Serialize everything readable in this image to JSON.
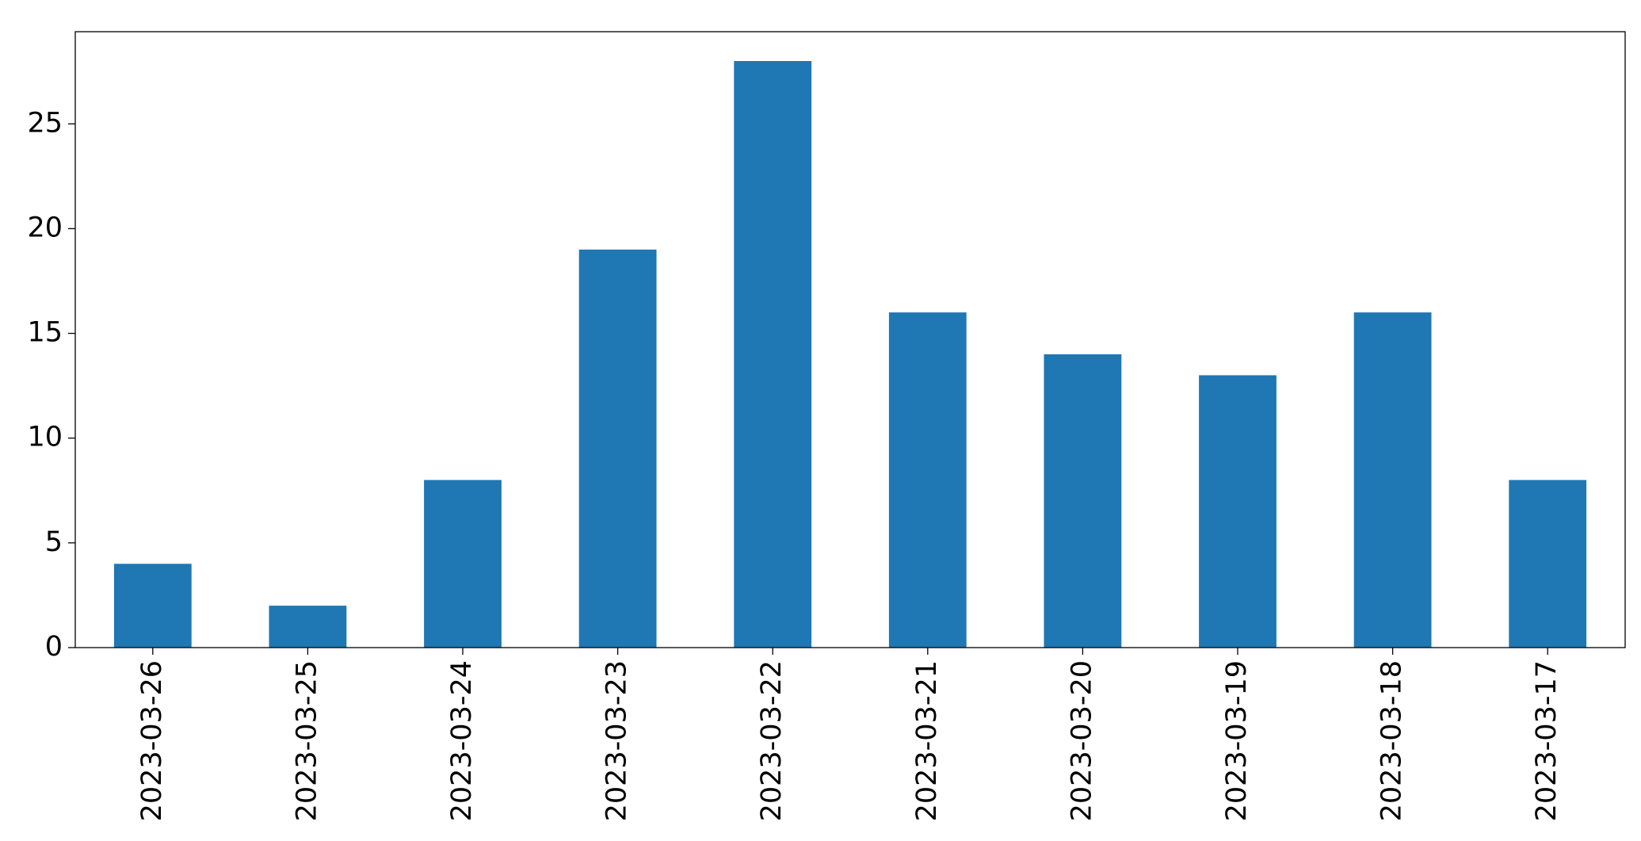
{
  "chart_data": {
    "type": "bar",
    "categories": [
      "2023-03-26",
      "2023-03-25",
      "2023-03-24",
      "2023-03-23",
      "2023-03-22",
      "2023-03-21",
      "2023-03-20",
      "2023-03-19",
      "2023-03-18",
      "2023-03-17"
    ],
    "values": [
      4,
      2,
      8,
      19,
      28,
      16,
      14,
      13,
      16,
      8
    ],
    "color": "#1f77b4",
    "ylim": [
      0,
      29.4
    ],
    "yticks": [
      0,
      5,
      10,
      15,
      20,
      25
    ]
  }
}
